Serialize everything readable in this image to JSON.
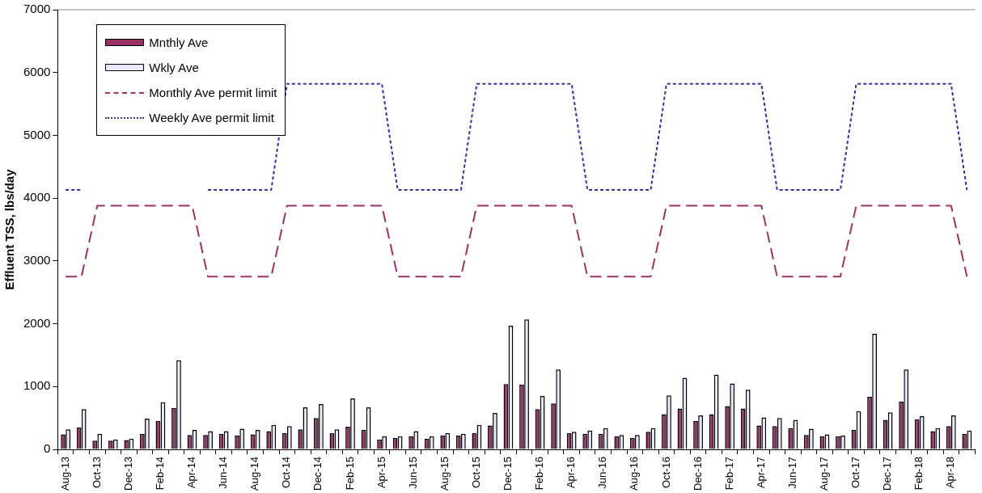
{
  "chart_data": {
    "type": "bar",
    "ylabel": "Effluent TSS, lbs/day",
    "categories": [
      "Aug-13",
      null,
      "Oct-13",
      null,
      "Dec-13",
      null,
      "Feb-14",
      null,
      "Apr-14",
      null,
      "Jun-14",
      null,
      "Aug-14",
      null,
      "Oct-14",
      null,
      "Dec-14",
      null,
      "Feb-15",
      null,
      "Apr-15",
      null,
      "Jun-15",
      null,
      "Aug-15",
      null,
      "Oct-15",
      null,
      "Dec-15",
      null,
      "Feb-16",
      null,
      "Apr-16",
      null,
      "Jun-16",
      null,
      "Aug-16",
      null,
      "Oct-16",
      null,
      "Dec-16",
      null,
      "Feb-17",
      null,
      "Apr-17",
      null,
      "Jun-17",
      null,
      "Aug-17",
      null,
      "Oct-17",
      null,
      "Dec-17",
      null,
      "Feb-18",
      null,
      "Apr-18",
      null
    ],
    "series": [
      {
        "name": "Mnthly Ave",
        "color": "#993366",
        "values": [
          240,
          350,
          140,
          140,
          150,
          250,
          450,
          660,
          230,
          230,
          250,
          220,
          240,
          290,
          260,
          320,
          500,
          260,
          360,
          310,
          160,
          180,
          210,
          170,
          220,
          220,
          260,
          380,
          1040,
          1030,
          640,
          730,
          260,
          250,
          250,
          210,
          180,
          280,
          560,
          650,
          450,
          560,
          690,
          650,
          380,
          370,
          340,
          230,
          210,
          210,
          310,
          840,
          470,
          760,
          480,
          290,
          370,
          250
        ]
      },
      {
        "name": "Wkly Ave",
        "color": "#e8e8f8",
        "values": [
          320,
          640,
          250,
          160,
          170,
          490,
          750,
          1420,
          310,
          290,
          290,
          330,
          310,
          390,
          370,
          670,
          720,
          320,
          810,
          670,
          210,
          210,
          290,
          210,
          260,
          250,
          390,
          580,
          1970,
          2070,
          850,
          1270,
          280,
          300,
          340,
          230,
          230,
          340,
          860,
          1140,
          540,
          1190,
          1050,
          950,
          510,
          500,
          470,
          330,
          240,
          220,
          610,
          1840,
          590,
          1270,
          530,
          340,
          540,
          300
        ]
      },
      {
        "name": "Monthly Ave permit limit",
        "type": "line",
        "line_style": "dashed",
        "color": "#993366",
        "values": [
          2750,
          2750,
          3880,
          3880,
          3880,
          3880,
          3880,
          3880,
          3880,
          2750,
          2750,
          2750,
          2750,
          2750,
          3880,
          3880,
          3880,
          3880,
          3880,
          3880,
          3880,
          2750,
          2750,
          2750,
          2750,
          2750,
          3880,
          3880,
          3880,
          3880,
          3880,
          3880,
          3880,
          2750,
          2750,
          2750,
          2750,
          2750,
          3880,
          3880,
          3880,
          3880,
          3880,
          3880,
          3880,
          2750,
          2750,
          2750,
          2750,
          2750,
          3880,
          3880,
          3880,
          3880,
          3880,
          3880,
          3880,
          2750
        ]
      },
      {
        "name": "Weekly Ave permit limit",
        "type": "line",
        "line_style": "dotted",
        "color": "#333399",
        "values": [
          4130,
          4130,
          null,
          null,
          null,
          null,
          null,
          null,
          null,
          4130,
          4130,
          4130,
          4130,
          4130,
          5820,
          5820,
          5820,
          5820,
          5820,
          5820,
          5820,
          4130,
          4130,
          4130,
          4130,
          4130,
          5820,
          5820,
          5820,
          5820,
          5820,
          5820,
          5820,
          4130,
          4130,
          4130,
          4130,
          4130,
          5820,
          5820,
          5820,
          5820,
          5820,
          5820,
          5820,
          4130,
          4130,
          4130,
          4130,
          4130,
          5820,
          5820,
          5820,
          5820,
          5820,
          5820,
          5820,
          4130
        ]
      }
    ],
    "ylim": [
      0,
      7000
    ],
    "yticks": [
      0,
      1000,
      2000,
      3000,
      4000,
      5000,
      6000,
      7000
    ],
    "grid": false,
    "legend": "top left",
    "marker": "none"
  }
}
